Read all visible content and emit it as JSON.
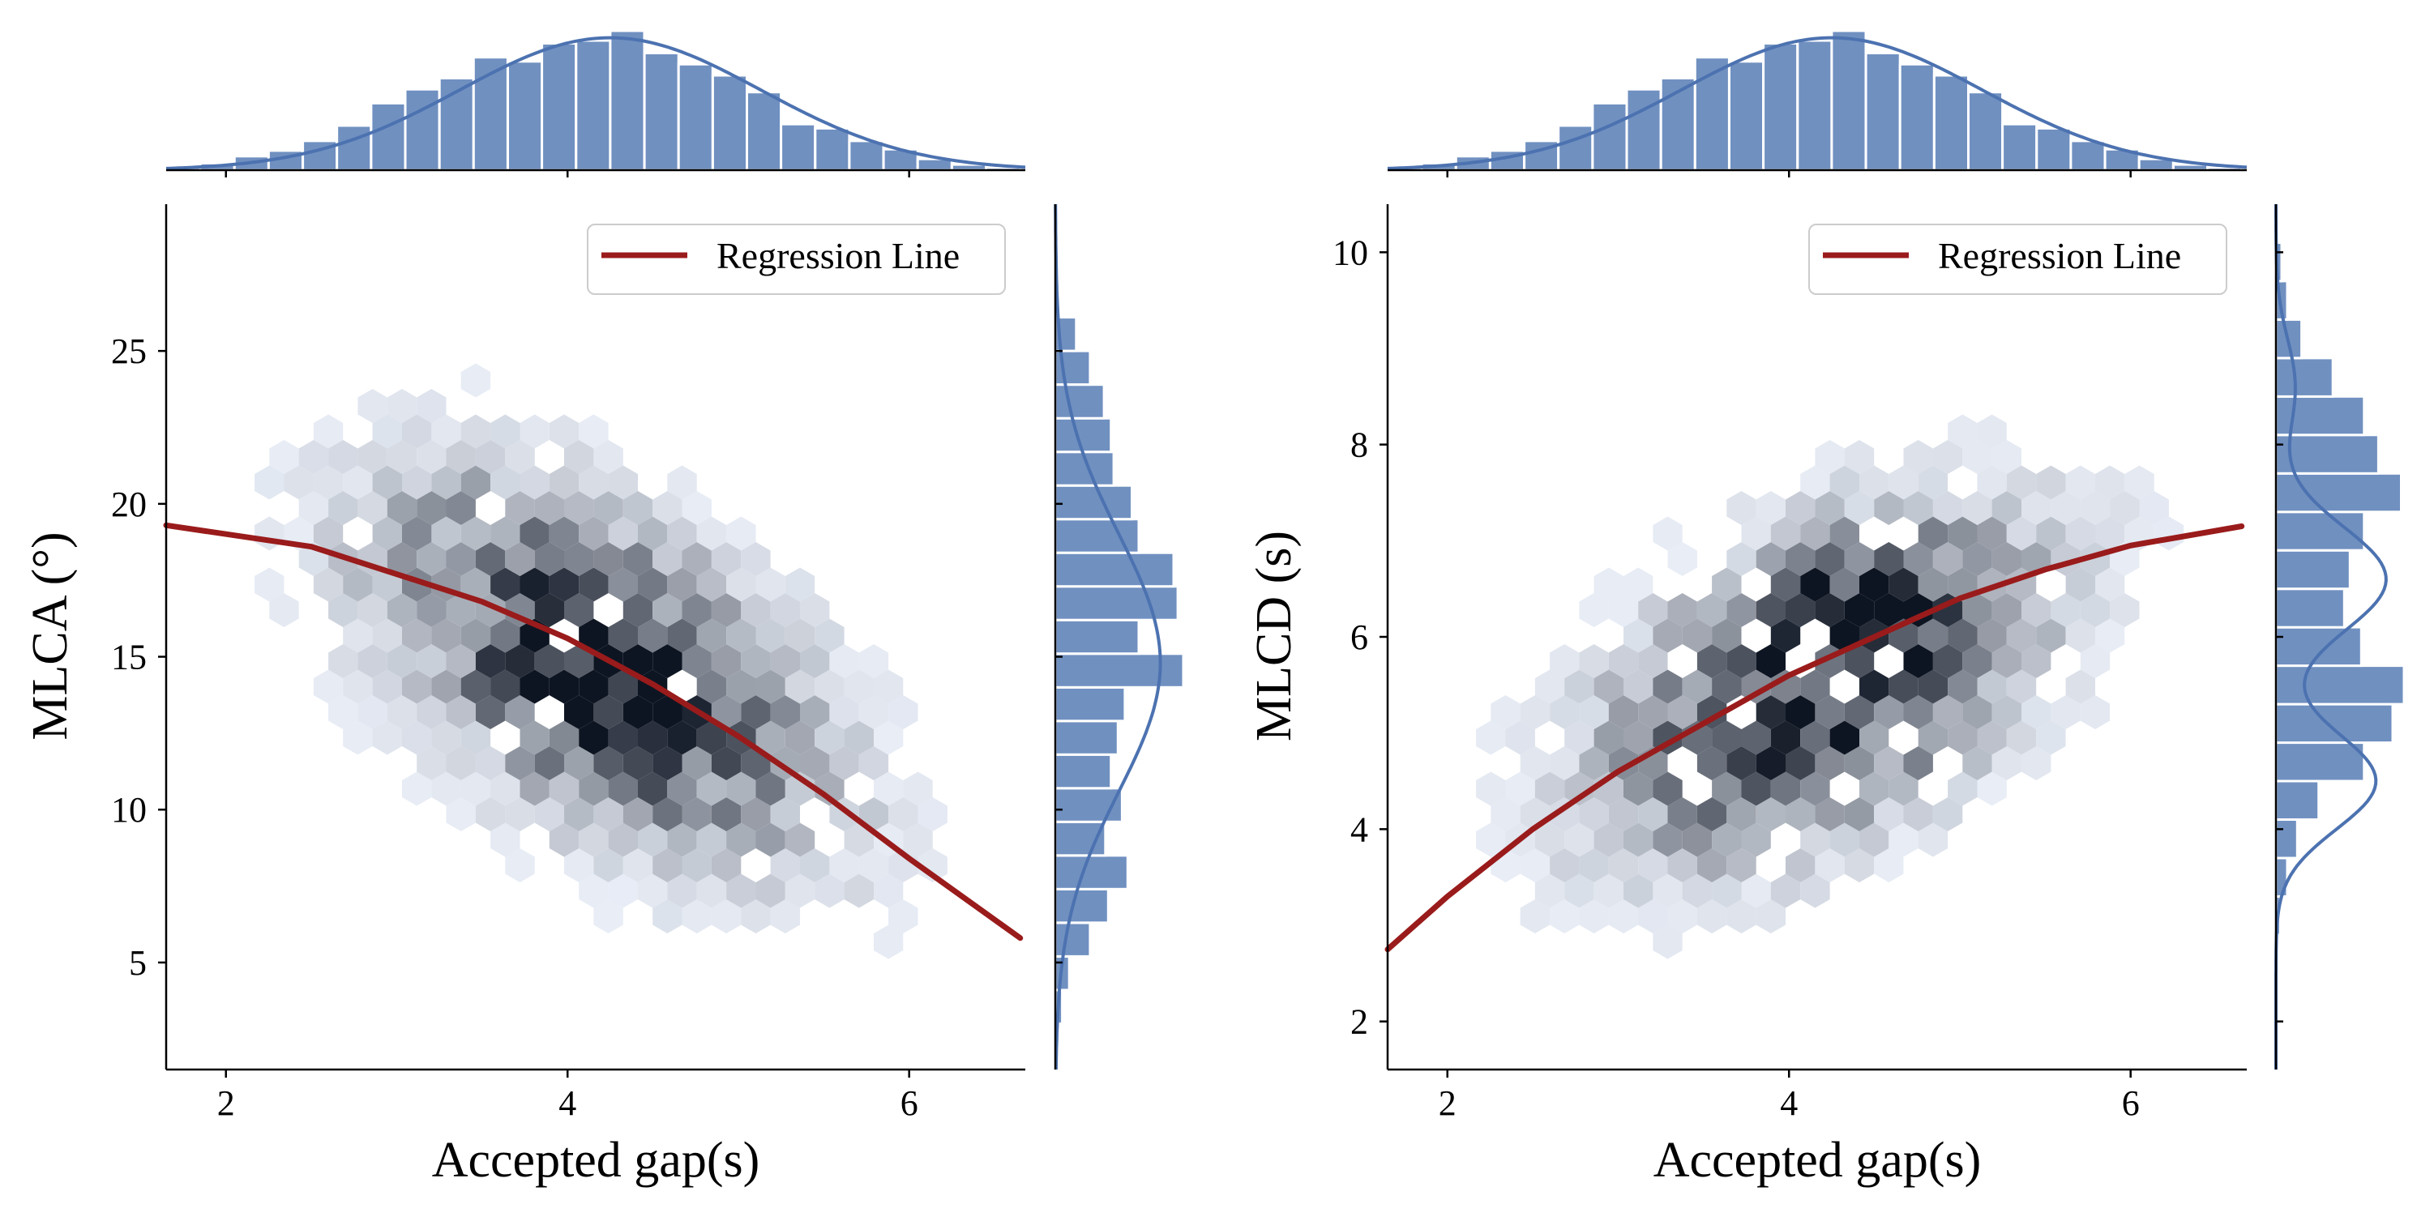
{
  "chart_data": [
    {
      "type": "hexbin",
      "panel": "left",
      "xlabel": "Accepted gap(s)",
      "ylabel": "MLCA (°)",
      "xlim": [
        1.65,
        6.68
      ],
      "ylim": [
        1.5,
        29.8
      ],
      "xticks": [
        2,
        4,
        6
      ],
      "yticks": [
        5,
        10,
        15,
        20,
        25
      ],
      "legend": {
        "label": "Regression Line",
        "position": "top-right"
      },
      "colors": {
        "hex_max": "#0e1522",
        "hex_min": "#e8edf6",
        "hist": "#7090c0",
        "kde": "#4c72b0",
        "regression": "#9a1b1b"
      },
      "density": {
        "x_mean": 4.2,
        "x_sd": 0.95,
        "y_mean": 14.6,
        "y_sd": 4.4,
        "corr": -0.55,
        "peak_x": 4.2,
        "peak_y": 13.4
      },
      "regression": {
        "x": [
          1.65,
          2.5,
          3.5,
          4.0,
          4.5,
          5.0,
          5.5,
          6.0,
          6.65
        ],
        "y": [
          19.3,
          18.6,
          16.8,
          15.6,
          14.1,
          12.4,
          10.5,
          8.4,
          5.8
        ]
      },
      "marginal_x": {
        "bin_edges": [
          1.65,
          1.85,
          2.05,
          2.25,
          2.45,
          2.65,
          2.85,
          3.05,
          3.25,
          3.45,
          3.65,
          3.85,
          4.05,
          4.25,
          4.45,
          4.65,
          4.85,
          5.05,
          5.25,
          5.45,
          5.65,
          5.85,
          6.05,
          6.25,
          6.45,
          6.65
        ],
        "counts": [
          2,
          5,
          10,
          14,
          21,
          32,
          48,
          58,
          66,
          81,
          78,
          91,
          93,
          100,
          84,
          76,
          68,
          56,
          33,
          30,
          21,
          15,
          8,
          4,
          2
        ],
        "kde_mean": 4.25,
        "kde_sd": 0.88
      },
      "marginal_y": {
        "bin_edges": [
          3.0,
          4.1,
          5.2,
          6.3,
          7.4,
          8.5,
          9.6,
          10.7,
          11.8,
          12.9,
          14.0,
          15.1,
          16.2,
          17.3,
          18.4,
          19.5,
          20.6,
          21.7,
          22.8,
          23.9,
          25.0,
          26.1
        ],
        "counts": [
          5,
          10,
          25,
          38,
          52,
          36,
          48,
          40,
          45,
          50,
          92,
          60,
          88,
          85,
          60,
          55,
          42,
          40,
          35,
          25,
          15
        ],
        "kde_mean": 14.8,
        "kde_sd": 4.2
      }
    },
    {
      "type": "hexbin",
      "panel": "right",
      "xlabel": "Accepted gap(s)",
      "ylabel": "MLCD (s)",
      "xlim": [
        1.65,
        6.68
      ],
      "ylim": [
        1.5,
        10.5
      ],
      "xticks": [
        2,
        4,
        6
      ],
      "yticks": [
        2,
        4,
        6,
        8,
        10
      ],
      "legend": {
        "label": "Regression Line",
        "position": "top-right"
      },
      "colors": {
        "hex_max": "#0e1522",
        "hex_min": "#e8edf6",
        "hist": "#7090c0",
        "kde": "#4c72b0",
        "regression": "#9a1b1b"
      },
      "density": {
        "x_mean": 4.2,
        "x_sd": 0.95,
        "y_mean": 5.5,
        "y_sd": 1.3,
        "corr": 0.5,
        "peak_x": 4.5,
        "peak_y": 6.4
      },
      "regression": {
        "x": [
          1.65,
          2.0,
          2.5,
          3.0,
          3.5,
          4.0,
          4.5,
          5.0,
          5.5,
          6.0,
          6.65
        ],
        "y": [
          2.75,
          3.3,
          4.0,
          4.6,
          5.1,
          5.6,
          6.0,
          6.4,
          6.7,
          6.95,
          7.15
        ]
      },
      "marginal_x": {
        "bin_edges": [
          1.65,
          1.85,
          2.05,
          2.25,
          2.45,
          2.65,
          2.85,
          3.05,
          3.25,
          3.45,
          3.65,
          3.85,
          4.05,
          4.25,
          4.45,
          4.65,
          4.85,
          5.05,
          5.25,
          5.45,
          5.65,
          5.85,
          6.05,
          6.25,
          6.45,
          6.65
        ],
        "counts": [
          2,
          5,
          10,
          14,
          21,
          32,
          48,
          58,
          66,
          81,
          78,
          91,
          93,
          100,
          84,
          76,
          68,
          56,
          33,
          30,
          21,
          15,
          8,
          4,
          2
        ],
        "kde_mean": 4.25,
        "kde_sd": 0.88
      },
      "marginal_y": {
        "bin_edges": [
          2.9,
          3.3,
          3.7,
          4.1,
          4.5,
          4.9,
          5.3,
          5.7,
          6.1,
          6.5,
          6.9,
          7.3,
          7.7,
          8.1,
          8.5,
          8.9,
          9.3,
          9.7,
          10.1
        ],
        "counts": [
          3,
          8,
          15,
          30,
          62,
          82,
          90,
          60,
          48,
          52,
          62,
          88,
          72,
          62,
          40,
          18,
          8,
          4
        ],
        "kde_peaks": [
          [
            4.5,
            0.5,
            0.78
          ],
          [
            6.6,
            0.55,
            0.86
          ],
          [
            8.6,
            0.5,
            0.15
          ]
        ]
      }
    }
  ]
}
